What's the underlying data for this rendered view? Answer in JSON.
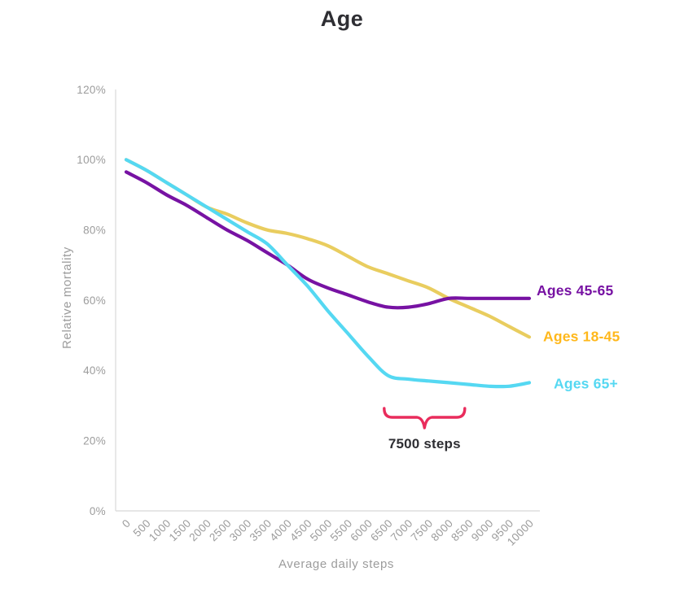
{
  "page": {
    "background": "#ffffff"
  },
  "chart_data": {
    "type": "line",
    "title": "Age",
    "xlabel": "Average daily steps",
    "ylabel": "Relative mortality",
    "ylim": [
      0,
      120
    ],
    "y_tick_labels": [
      "0%",
      "20%",
      "40%",
      "60%",
      "80%",
      "100%",
      "120%"
    ],
    "x": [
      0,
      500,
      1000,
      1500,
      2000,
      2500,
      3000,
      3500,
      4000,
      4500,
      5000,
      5500,
      6000,
      6500,
      7000,
      7500,
      8000,
      8500,
      9000,
      9500,
      10000
    ],
    "x_tick_labels": [
      "0",
      "500",
      "1000",
      "1500",
      "2000",
      "2500",
      "3000",
      "3500",
      "4000",
      "4500",
      "5000",
      "5500",
      "6000",
      "6500",
      "7000",
      "7500",
      "8000",
      "8500",
      "9000",
      "9500",
      "10000"
    ],
    "grid": false,
    "legend_position": "right of line ends",
    "axis_color": "#dedede",
    "tick_text_color": "#9c9c9c",
    "title_color": "#2e2e33",
    "series": [
      {
        "name": "Ages 45-65",
        "color": "#7712a3",
        "label_color": "#7712a3",
        "values": [
          96.5,
          93.5,
          90,
          87,
          83.5,
          80,
          77,
          73.5,
          70,
          66,
          63.5,
          61.5,
          59.5,
          58,
          58,
          59,
          60.5,
          60.5,
          60.5,
          60.5,
          60.5
        ]
      },
      {
        "name": "Ages 18-45",
        "color": "#e9cd5f",
        "label_color": "#ffb81c",
        "values": [
          100,
          97,
          93.5,
          90,
          86.5,
          84.5,
          82,
          80,
          79,
          77.5,
          75.5,
          72.5,
          69.5,
          67.5,
          65.5,
          63.5,
          60.5,
          58,
          55.5,
          52.5,
          49.5
        ]
      },
      {
        "name": "Ages 65+",
        "color": "#55d8f2",
        "label_color": "#55d8f2",
        "values": [
          100,
          97,
          93.5,
          90,
          86.5,
          83,
          79.5,
          76,
          70,
          64,
          57,
          50.5,
          44,
          38.5,
          37.5,
          37,
          36.5,
          36,
          35.5,
          35.5,
          36.5
        ]
      }
    ],
    "annotation": {
      "text": "7500 steps",
      "brace_from_steps": 6400,
      "brace_to_steps": 8400,
      "color": "#e92c5c"
    }
  }
}
